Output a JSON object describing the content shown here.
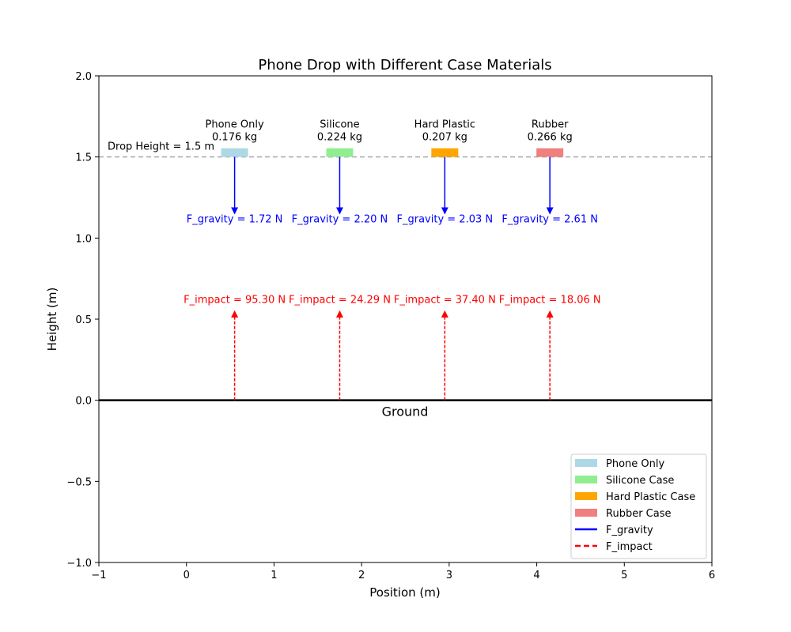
{
  "chart_data": {
    "type": "annotated-plot",
    "title": "Phone Drop with Different Case Materials",
    "xlabel": "Position (m)",
    "ylabel": "Height (m)",
    "xlim": [
      -1,
      6
    ],
    "ylim": [
      -1,
      2
    ],
    "xticks": [
      -1,
      0,
      1,
      2,
      3,
      4,
      5,
      6
    ],
    "yticks": [
      -1.0,
      -0.5,
      0.0,
      0.5,
      1.0,
      1.5,
      2.0
    ],
    "xtick_labels": [
      "−1",
      "0",
      "1",
      "2",
      "3",
      "4",
      "5",
      "6"
    ],
    "ytick_labels": [
      "−1.0",
      "−0.5",
      "0.0",
      "0.5",
      "1.0",
      "1.5",
      "2.0"
    ],
    "grid": false,
    "drop_height": 1.5,
    "drop_height_label": "Drop Height = 1.5 m",
    "ground_level": 0,
    "ground_label": "Ground",
    "phones": [
      {
        "name": "Phone Only",
        "mass_label": "0.176 kg",
        "x": 0.55,
        "color": "#add8e6",
        "gravity_label": "F_gravity = 1.72 N",
        "impact_label": "F_impact = 95.30 N"
      },
      {
        "name": "Silicone",
        "mass_label": "0.224 kg",
        "x": 1.75,
        "color": "#90ee90",
        "gravity_label": "F_gravity = 2.20 N",
        "impact_label": "F_impact = 24.29 N"
      },
      {
        "name": "Hard Plastic",
        "mass_label": "0.207 kg",
        "x": 2.95,
        "color": "#ffa500",
        "gravity_label": "F_gravity = 2.03 N",
        "impact_label": "F_impact = 37.40 N"
      },
      {
        "name": "Rubber",
        "mass_label": "0.266 kg",
        "x": 4.15,
        "color": "#f08080",
        "gravity_label": "F_gravity = 2.61 N",
        "impact_label": "F_impact = 18.06 N"
      }
    ],
    "gravity_arrow": {
      "from": 1.5,
      "to": 1.15,
      "color": "#0000ff"
    },
    "impact_arrow": {
      "from": 0.0,
      "to": 0.55,
      "color": "#ff0000"
    },
    "legend": {
      "placement": "lower-right",
      "entries": [
        {
          "label": "Phone Only",
          "kind": "patch",
          "color": "#add8e6"
        },
        {
          "label": "Silicone Case",
          "kind": "patch",
          "color": "#90ee90"
        },
        {
          "label": "Hard Plastic Case",
          "kind": "patch",
          "color": "#ffa500"
        },
        {
          "label": "Rubber Case",
          "kind": "patch",
          "color": "#f08080"
        },
        {
          "label": "F_gravity",
          "kind": "line",
          "color": "#0000ff"
        },
        {
          "label": "F_impact",
          "kind": "dashed-line",
          "color": "#ff0000"
        }
      ]
    }
  }
}
